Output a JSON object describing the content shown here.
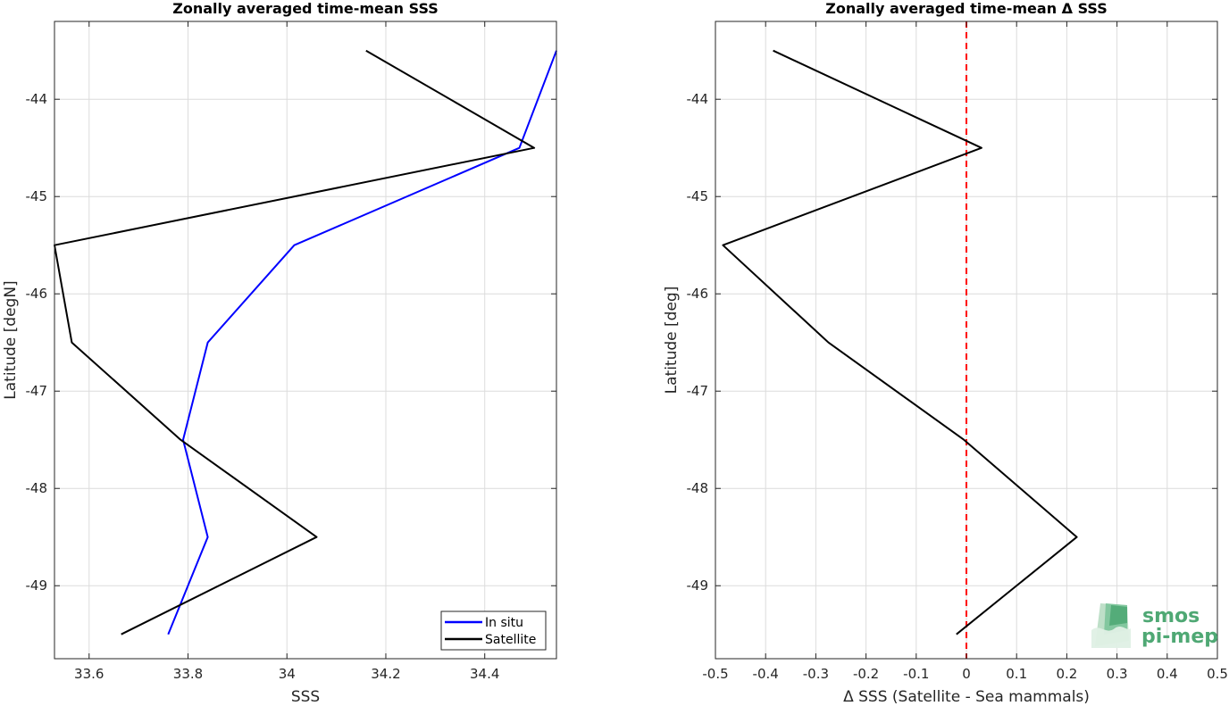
{
  "chart_data": [
    {
      "type": "line",
      "title": "Zonally averaged time-mean SSS",
      "xlabel": "SSS",
      "ylabel": "Latitude [degN]",
      "xlim": [
        33.53,
        34.545
      ],
      "ylim": [
        -49.75,
        -43.2
      ],
      "xticks": [
        33.6,
        33.8,
        34,
        34.2,
        34.4
      ],
      "xtick_labels": [
        "33.6",
        "33.8",
        "34",
        "34.2",
        "34.4"
      ],
      "yticks": [
        -44,
        -45,
        -46,
        -47,
        -48,
        -49
      ],
      "ytick_labels": [
        "-44",
        "-45",
        "-46",
        "-47",
        "-48",
        "-49"
      ],
      "grid": true,
      "legend_position": "bottom-right",
      "series": [
        {
          "name": "In situ",
          "color": "#0000ff",
          "x": [
            34.545,
            34.47,
            34.015,
            33.84,
            33.79,
            33.84,
            33.76
          ],
          "y": [
            -43.5,
            -44.5,
            -45.5,
            -46.5,
            -47.5,
            -48.5,
            -49.5
          ]
        },
        {
          "name": "Satellite",
          "color": "#000000",
          "x": [
            34.16,
            34.5,
            33.53,
            33.565,
            33.785,
            34.06,
            33.665
          ],
          "y": [
            -43.5,
            -44.5,
            -45.5,
            -46.5,
            -47.5,
            -48.5,
            -49.5
          ]
        }
      ]
    },
    {
      "type": "line",
      "title": "Zonally averaged time-mean Δ SSS",
      "xlabel": "Δ SSS (Satellite - Sea mammals)",
      "ylabel": "Latitude [deg]",
      "xlim": [
        -0.5,
        0.5
      ],
      "ylim": [
        -49.75,
        -43.2
      ],
      "xticks": [
        -0.5,
        -0.4,
        -0.3,
        -0.2,
        -0.1,
        0,
        0.1,
        0.2,
        0.3,
        0.4,
        0.5
      ],
      "xtick_labels": [
        "-0.5",
        "-0.4",
        "-0.3",
        "-0.2",
        "-0.1",
        "0",
        "0.1",
        "0.2",
        "0.3",
        "0.4",
        "0.5"
      ],
      "yticks": [
        -44,
        -45,
        -46,
        -47,
        -48,
        -49
      ],
      "ytick_labels": [
        "-44",
        "-45",
        "-46",
        "-47",
        "-48",
        "-49"
      ],
      "grid": true,
      "reference_line": {
        "x": 0,
        "color": "#ff0000",
        "style": "dashed"
      },
      "series": [
        {
          "color": "#000000",
          "x": [
            -0.385,
            0.03,
            -0.485,
            -0.275,
            -0.005,
            0.22,
            -0.02
          ],
          "y": [
            -43.5,
            -44.5,
            -45.5,
            -46.5,
            -47.5,
            -48.5,
            -49.5
          ]
        }
      ]
    }
  ],
  "logo": {
    "line1": "smos",
    "line2": "pi-mep",
    "color": "#4fa874"
  }
}
